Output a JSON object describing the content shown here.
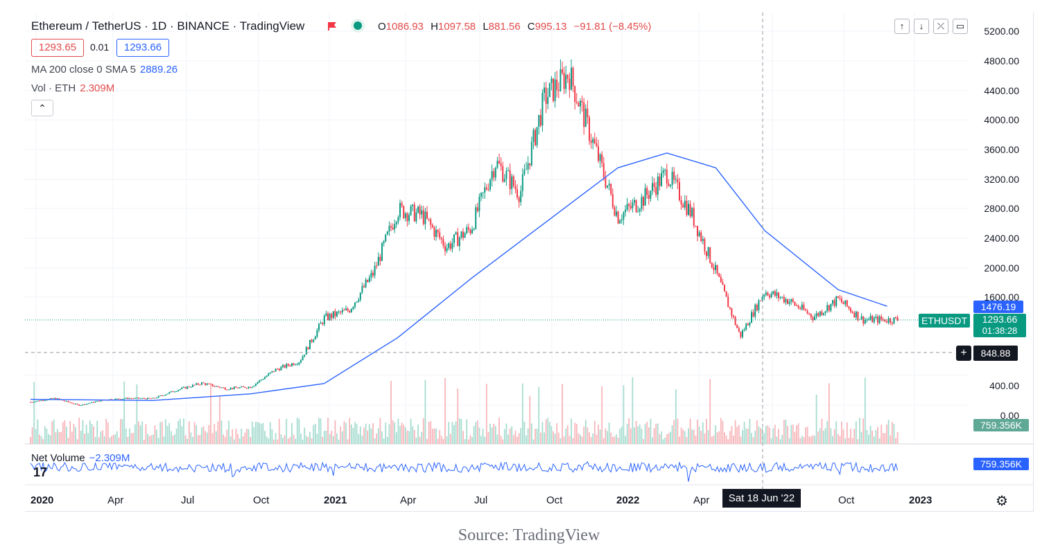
{
  "header": {
    "title": "Ethereum / TetherUS · 1D · BINANCE · TradingView",
    "ohlc": {
      "o_label": "O",
      "o": "1086.93",
      "h_label": "H",
      "h": "1097.58",
      "l_label": "L",
      "l": "881.56",
      "c_label": "C",
      "c": "995.13",
      "change": "−91.81 (−8.45%)"
    },
    "bid": "1293.65",
    "spread": "0.01",
    "ask": "1293.66"
  },
  "indicators": {
    "ma_label": "MA 200 close 0 SMA 5",
    "ma_value": "2889.26",
    "vol_label": "Vol · ETH",
    "vol_value": "2.309M",
    "collapse_glyph": "⌃",
    "net_volume_label": "Net Volume",
    "net_volume_value": "−2.309M"
  },
  "toolbar": {
    "up": "↑",
    "down": "↓",
    "collapse": "⤫",
    "fullscreen": "▭"
  },
  "price_axis": {
    "ticks": [
      "5200.00",
      "4800.00",
      "4400.00",
      "4000.00",
      "3600.00",
      "3200.00",
      "2800.00",
      "2400.00",
      "2000.00",
      "1600.00",
      "400.00",
      "0.00"
    ],
    "ma_tag": "1476.19",
    "symbol_tag": "ETHUSDT",
    "last_price": "1293.66",
    "countdown": "01:38:28",
    "crosshair_price": "848.88",
    "volume_tag": "759.356K",
    "netvol_tag": "759.356K"
  },
  "time_axis": {
    "ticks": [
      {
        "label": "2020",
        "bold": true
      },
      {
        "label": "Apr",
        "bold": false
      },
      {
        "label": "Jul",
        "bold": false
      },
      {
        "label": "Oct",
        "bold": false
      },
      {
        "label": "2021",
        "bold": true
      },
      {
        "label": "Apr",
        "bold": false
      },
      {
        "label": "Jul",
        "bold": false
      },
      {
        "label": "Oct",
        "bold": false
      },
      {
        "label": "2022",
        "bold": true
      },
      {
        "label": "Apr",
        "bold": false
      },
      {
        "label": "Jul",
        "bold": false
      },
      {
        "label": "Oct",
        "bold": false
      },
      {
        "label": "2023",
        "bold": true
      }
    ],
    "crosshair_date": "Sat 18 Jun '22"
  },
  "logo": "17",
  "colors": {
    "up": "#089981",
    "down": "#f23645",
    "ma": "#2962ff",
    "grid": "#f0f3fa",
    "crosshair": "#9598a1"
  },
  "caption": "Source: TradingView",
  "chart_data": {
    "type": "candlestick",
    "symbol": "ETHUSDT",
    "interval": "1D",
    "price_range": [
      0,
      5200
    ],
    "monthly_close": [
      {
        "t": "2020-01",
        "v": 180
      },
      {
        "t": "2020-02",
        "v": 230
      },
      {
        "t": "2020-03",
        "v": 135
      },
      {
        "t": "2020-04",
        "v": 210
      },
      {
        "t": "2020-05",
        "v": 230
      },
      {
        "t": "2020-06",
        "v": 225
      },
      {
        "t": "2020-07",
        "v": 345
      },
      {
        "t": "2020-08",
        "v": 435
      },
      {
        "t": "2020-09",
        "v": 360
      },
      {
        "t": "2020-10",
        "v": 385
      },
      {
        "t": "2020-11",
        "v": 615
      },
      {
        "t": "2020-12",
        "v": 735
      },
      {
        "t": "2021-01",
        "v": 1315
      },
      {
        "t": "2021-02",
        "v": 1420
      },
      {
        "t": "2021-03",
        "v": 1920
      },
      {
        "t": "2021-04",
        "v": 2780
      },
      {
        "t": "2021-05",
        "v": 2710
      },
      {
        "t": "2021-06",
        "v": 2280
      },
      {
        "t": "2021-07",
        "v": 2530
      },
      {
        "t": "2021-08",
        "v": 3430
      },
      {
        "t": "2021-09",
        "v": 3000
      },
      {
        "t": "2021-10",
        "v": 4290
      },
      {
        "t": "2021-11",
        "v": 4630
      },
      {
        "t": "2021-12",
        "v": 3680
      },
      {
        "t": "2022-01",
        "v": 2690
      },
      {
        "t": "2022-02",
        "v": 2920
      },
      {
        "t": "2022-03",
        "v": 3280
      },
      {
        "t": "2022-04",
        "v": 2730
      },
      {
        "t": "2022-05",
        "v": 1940
      },
      {
        "t": "2022-06",
        "v": 1070
      },
      {
        "t": "2022-07",
        "v": 1680
      },
      {
        "t": "2022-08",
        "v": 1550
      },
      {
        "t": "2022-09",
        "v": 1330
      },
      {
        "t": "2022-10",
        "v": 1570
      },
      {
        "t": "2022-11",
        "v": 1295
      },
      {
        "t": "2022-12",
        "v": 1294
      }
    ],
    "ma200": [
      {
        "t": "2020-01",
        "v": 215
      },
      {
        "t": "2020-06",
        "v": 200
      },
      {
        "t": "2020-10",
        "v": 290
      },
      {
        "t": "2021-01",
        "v": 430
      },
      {
        "t": "2021-04",
        "v": 1050
      },
      {
        "t": "2021-07",
        "v": 1850
      },
      {
        "t": "2021-10",
        "v": 2600
      },
      {
        "t": "2022-01",
        "v": 3350
      },
      {
        "t": "2022-03",
        "v": 3550
      },
      {
        "t": "2022-05",
        "v": 3350
      },
      {
        "t": "2022-07",
        "v": 2500
      },
      {
        "t": "2022-10",
        "v": 1700
      },
      {
        "t": "2022-12",
        "v": 1476
      }
    ]
  }
}
